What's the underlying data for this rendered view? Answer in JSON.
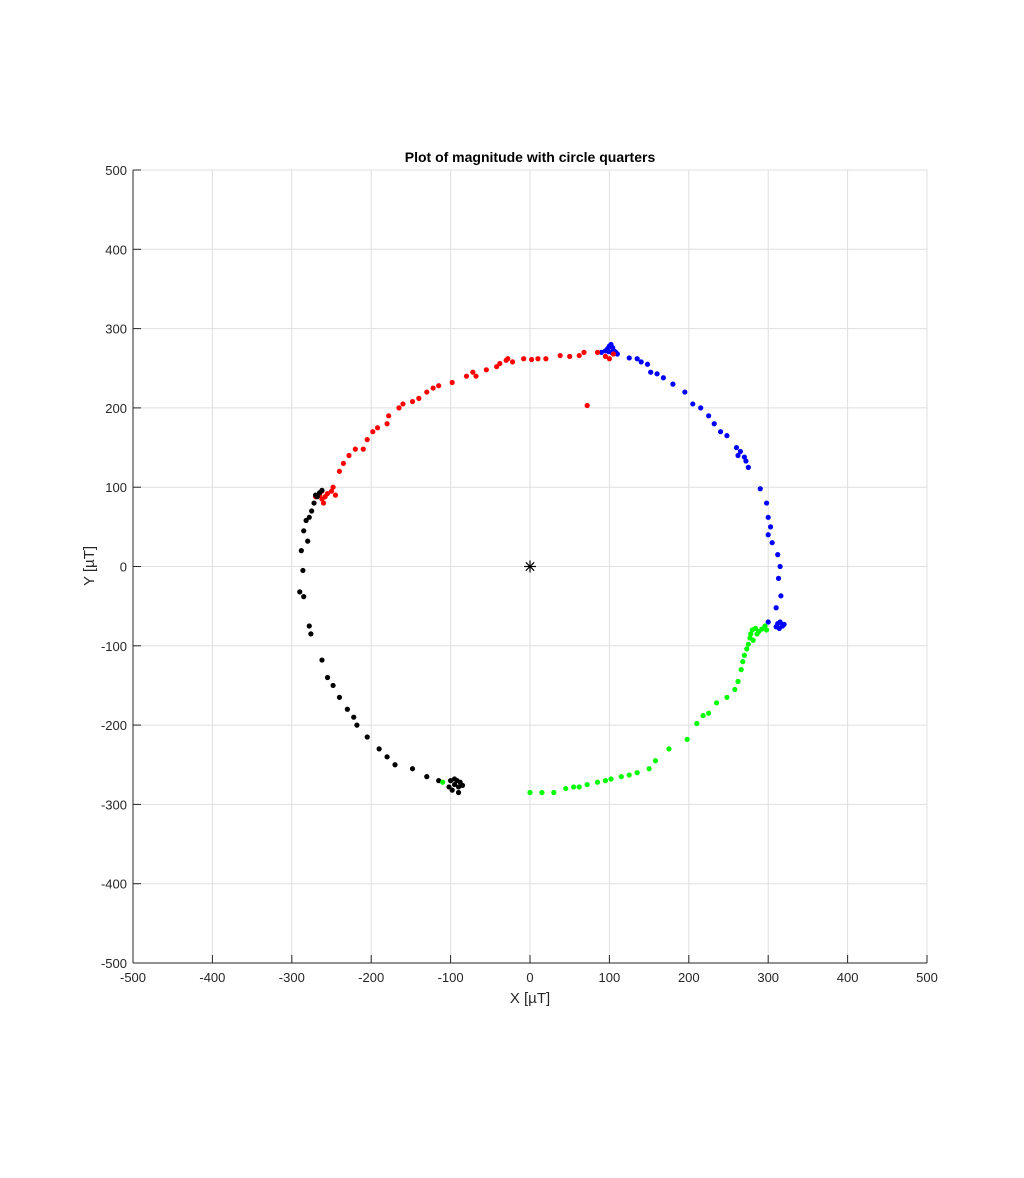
{
  "chart_data": {
    "type": "scatter",
    "title": "Plot of magnitude with circle quarters",
    "xlabel": "X [µT]",
    "ylabel": "Y [µT]",
    "xlim": [
      -500,
      500
    ],
    "ylim": [
      -500,
      500
    ],
    "xticks": [
      -500,
      -400,
      -300,
      -200,
      -100,
      0,
      100,
      200,
      300,
      400,
      500
    ],
    "yticks": [
      -500,
      -400,
      -300,
      -200,
      -100,
      0,
      100,
      200,
      300,
      400,
      500
    ],
    "grid": true,
    "colors": {
      "q1": "#0000ff",
      "q2": "#ff0000",
      "q3": "#000000",
      "q4": "#00ff00",
      "center": "#000000",
      "grid": "#dfdfdf",
      "axis": "#262626"
    },
    "center_marker": {
      "x": 0,
      "y": 0,
      "symbol": "asterisk"
    },
    "series": [
      {
        "color_key": "q1",
        "points": [
          [
            90,
            270
          ],
          [
            95,
            272
          ],
          [
            98,
            275
          ],
          [
            100,
            278
          ],
          [
            102,
            280
          ],
          [
            104,
            276
          ],
          [
            106,
            272
          ],
          [
            103,
            270
          ],
          [
            99,
            271
          ],
          [
            108,
            270
          ],
          [
            110,
            268
          ],
          [
            125,
            263
          ],
          [
            135,
            262
          ],
          [
            140,
            258
          ],
          [
            148,
            255
          ],
          [
            152,
            245
          ],
          [
            160,
            243
          ],
          [
            168,
            238
          ],
          [
            180,
            230
          ],
          [
            195,
            220
          ],
          [
            205,
            205
          ],
          [
            215,
            200
          ],
          [
            225,
            190
          ],
          [
            232,
            180
          ],
          [
            240,
            170
          ],
          [
            248,
            165
          ],
          [
            260,
            150
          ],
          [
            262,
            140
          ],
          [
            265,
            145
          ],
          [
            270,
            138
          ],
          [
            272,
            133
          ],
          [
            275,
            125
          ],
          [
            290,
            98
          ],
          [
            298,
            80
          ],
          [
            300,
            62
          ],
          [
            303,
            50
          ],
          [
            300,
            40
          ],
          [
            305,
            30
          ],
          [
            312,
            15
          ],
          [
            315,
            0
          ],
          [
            313,
            -15
          ],
          [
            316,
            -37
          ],
          [
            310,
            -52
          ],
          [
            300,
            -70
          ],
          [
            312,
            -72
          ],
          [
            315,
            -70
          ],
          [
            318,
            -75
          ],
          [
            314,
            -78
          ],
          [
            310,
            -76
          ],
          [
            320,
            -73
          ]
        ]
      },
      {
        "color_key": "q2",
        "points": [
          [
            -265,
            90
          ],
          [
            -262,
            85
          ],
          [
            -258,
            88
          ],
          [
            -255,
            92
          ],
          [
            -260,
            80
          ],
          [
            -250,
            95
          ],
          [
            -248,
            100
          ],
          [
            -245,
            90
          ],
          [
            -262,
            95
          ],
          [
            -270,
            88
          ],
          [
            -240,
            120
          ],
          [
            -235,
            130
          ],
          [
            -228,
            140
          ],
          [
            -220,
            148
          ],
          [
            -210,
            148
          ],
          [
            -205,
            160
          ],
          [
            -198,
            170
          ],
          [
            -192,
            175
          ],
          [
            -180,
            180
          ],
          [
            -178,
            190
          ],
          [
            -165,
            200
          ],
          [
            -160,
            205
          ],
          [
            -148,
            208
          ],
          [
            -140,
            212
          ],
          [
            -130,
            220
          ],
          [
            -122,
            225
          ],
          [
            -115,
            228
          ],
          [
            -98,
            232
          ],
          [
            -80,
            240
          ],
          [
            -72,
            245
          ],
          [
            -68,
            240
          ],
          [
            -55,
            248
          ],
          [
            -42,
            252
          ],
          [
            -38,
            256
          ],
          [
            -30,
            260
          ],
          [
            -28,
            262
          ],
          [
            -22,
            258
          ],
          [
            -8,
            262
          ],
          [
            2,
            261
          ],
          [
            10,
            262
          ],
          [
            20,
            262
          ],
          [
            38,
            266
          ],
          [
            50,
            265
          ],
          [
            62,
            266
          ],
          [
            68,
            270
          ],
          [
            72,
            203
          ],
          [
            85,
            270
          ],
          [
            95,
            265
          ],
          [
            100,
            262
          ],
          [
            105,
            268
          ]
        ]
      },
      {
        "color_key": "q3",
        "points": [
          [
            -270,
            90
          ],
          [
            -265,
            93
          ],
          [
            -262,
            96
          ],
          [
            -268,
            88
          ],
          [
            -272,
            80
          ],
          [
            -275,
            70
          ],
          [
            -278,
            62
          ],
          [
            -282,
            58
          ],
          [
            -285,
            45
          ],
          [
            -280,
            32
          ],
          [
            -288,
            20
          ],
          [
            -286,
            -5
          ],
          [
            -290,
            -32
          ],
          [
            -285,
            -38
          ],
          [
            -278,
            -75
          ],
          [
            -276,
            -85
          ],
          [
            -262,
            -118
          ],
          [
            -255,
            -140
          ],
          [
            -248,
            -150
          ],
          [
            -240,
            -165
          ],
          [
            -230,
            -180
          ],
          [
            -222,
            -190
          ],
          [
            -218,
            -200
          ],
          [
            -205,
            -215
          ],
          [
            -190,
            -230
          ],
          [
            -180,
            -240
          ],
          [
            -170,
            -250
          ],
          [
            -148,
            -255
          ],
          [
            -130,
            -265
          ],
          [
            -115,
            -270
          ],
          [
            -100,
            -270
          ],
          [
            -95,
            -275
          ],
          [
            -90,
            -278
          ],
          [
            -98,
            -282
          ],
          [
            -92,
            -270
          ],
          [
            -88,
            -272
          ],
          [
            -85,
            -276
          ],
          [
            -102,
            -278
          ],
          [
            -95,
            -268
          ],
          [
            -90,
            -285
          ]
        ]
      },
      {
        "color_key": "q4",
        "points": [
          [
            -110,
            -272
          ],
          [
            0,
            -285
          ],
          [
            15,
            -285
          ],
          [
            30,
            -285
          ],
          [
            45,
            -280
          ],
          [
            55,
            -278
          ],
          [
            62,
            -278
          ],
          [
            72,
            -275
          ],
          [
            85,
            -272
          ],
          [
            95,
            -270
          ],
          [
            102,
            -268
          ],
          [
            115,
            -265
          ],
          [
            125,
            -263
          ],
          [
            135,
            -260
          ],
          [
            150,
            -255
          ],
          [
            158,
            -245
          ],
          [
            175,
            -230
          ],
          [
            198,
            -218
          ],
          [
            210,
            -198
          ],
          [
            218,
            -188
          ],
          [
            225,
            -185
          ],
          [
            235,
            -172
          ],
          [
            248,
            -165
          ],
          [
            258,
            -155
          ],
          [
            262,
            -145
          ],
          [
            266,
            -130
          ],
          [
            268,
            -120
          ],
          [
            270,
            -112
          ],
          [
            273,
            -104
          ],
          [
            275,
            -98
          ],
          [
            277,
            -90
          ],
          [
            278,
            -85
          ],
          [
            280,
            -80
          ],
          [
            284,
            -78
          ],
          [
            288,
            -82
          ],
          [
            292,
            -79
          ],
          [
            296,
            -75
          ],
          [
            298,
            -80
          ],
          [
            286,
            -85
          ],
          [
            281,
            -93
          ]
        ]
      }
    ]
  }
}
